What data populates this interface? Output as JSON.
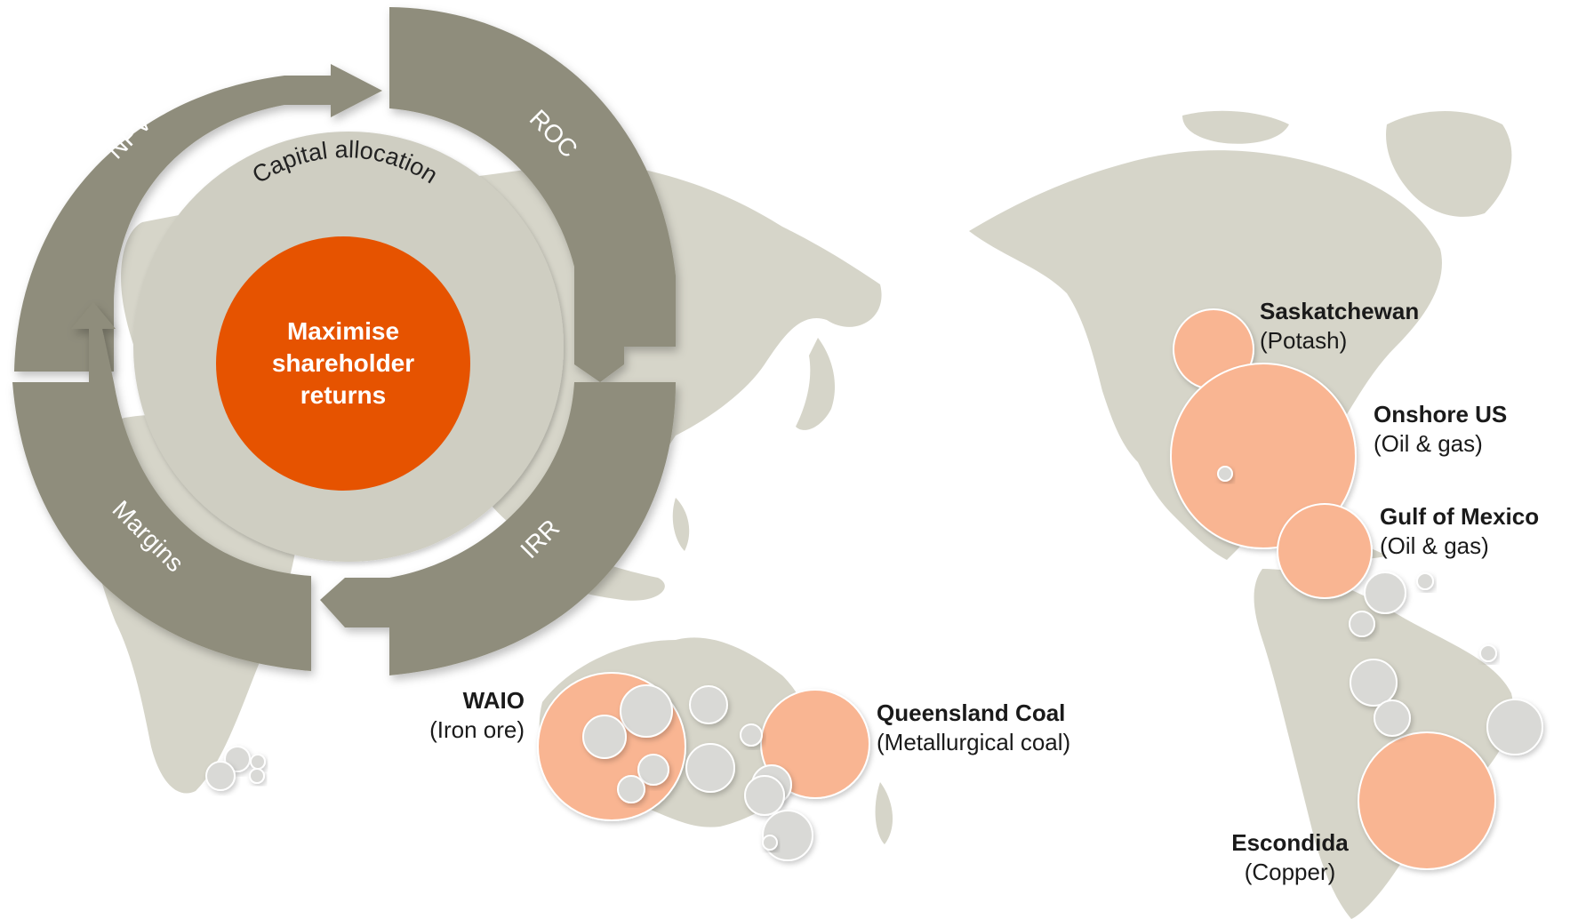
{
  "colors": {
    "map_land": "#d6d5c9",
    "cycle_segment": "#8f8d7b",
    "inner_disk": "#cfcec2",
    "core": "#e65300",
    "asset_bubble": "#f9b592",
    "minor_bubble": "#d9d9d6"
  },
  "cycle": {
    "core_text": "Maximise\nshareholder\nreturns",
    "ring_label": "Capital allocation",
    "segments": [
      {
        "label": "NPV"
      },
      {
        "label": "ROC"
      },
      {
        "label": "IRR"
      },
      {
        "label": "Margins"
      }
    ]
  },
  "assets": [
    {
      "name": "WAIO",
      "commodity": "(Iron ore)"
    },
    {
      "name": "Queensland Coal",
      "commodity": "(Metallurgical coal)"
    },
    {
      "name": "Saskatchewan",
      "commodity": "(Potash)"
    },
    {
      "name": "Onshore US",
      "commodity": "(Oil & gas)"
    },
    {
      "name": "Gulf of Mexico",
      "commodity": "(Oil & gas)"
    },
    {
      "name": "Escondida",
      "commodity": "(Copper)"
    }
  ]
}
